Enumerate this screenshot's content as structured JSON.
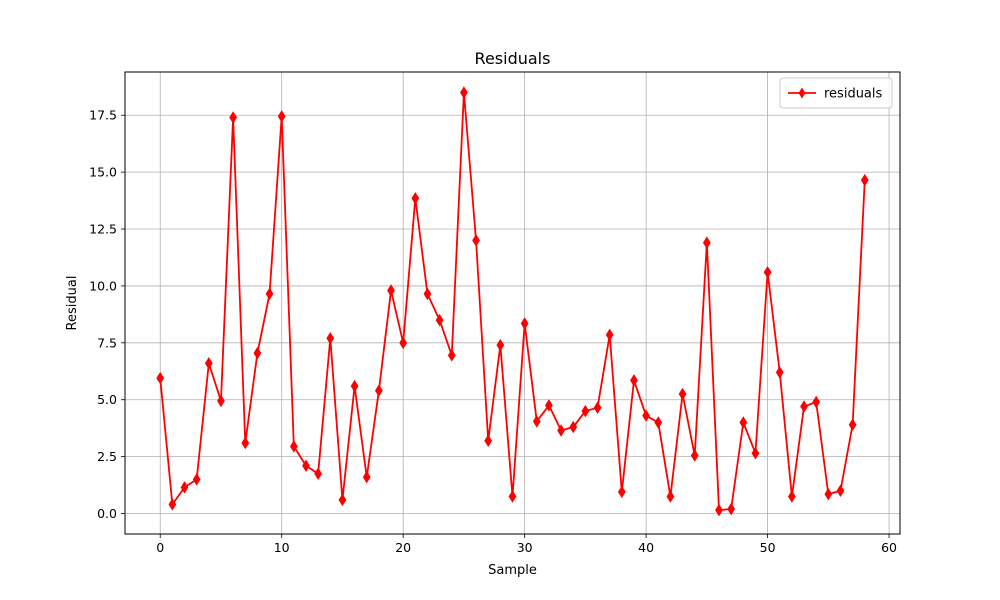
{
  "chart_data": {
    "type": "line",
    "title": "Residuals",
    "xlabel": "Sample",
    "ylabel": "Residual",
    "xlim": [
      -2.9,
      60.9
    ],
    "ylim": [
      -0.9,
      19.4
    ],
    "xticks": [
      0,
      10,
      20,
      30,
      40,
      50,
      60
    ],
    "yticks": [
      0.0,
      2.5,
      5.0,
      7.5,
      10.0,
      12.5,
      15.0,
      17.5
    ],
    "xtick_labels": [
      "0",
      "10",
      "20",
      "30",
      "40",
      "50",
      "60"
    ],
    "ytick_labels": [
      "0.0",
      "2.5",
      "5.0",
      "7.5",
      "10.0",
      "12.5",
      "15.0",
      "17.5"
    ],
    "grid": true,
    "legend_position": "top-right",
    "series": [
      {
        "name": "residuals",
        "color": "#ff0000",
        "marker": "diamond",
        "x": [
          0,
          1,
          2,
          3,
          4,
          5,
          6,
          7,
          8,
          9,
          10,
          11,
          12,
          13,
          14,
          15,
          16,
          17,
          18,
          19,
          20,
          21,
          22,
          23,
          24,
          25,
          26,
          27,
          28,
          29,
          30,
          31,
          32,
          33,
          34,
          35,
          36,
          37,
          38,
          39,
          40,
          41,
          42,
          43,
          44,
          45,
          46,
          47,
          48,
          49,
          50,
          51,
          52,
          53,
          54,
          55,
          56,
          57,
          58
        ],
        "values": [
          5.95,
          0.4,
          1.15,
          1.5,
          6.6,
          4.95,
          17.4,
          3.1,
          7.05,
          9.65,
          17.45,
          2.95,
          2.1,
          1.75,
          7.7,
          0.6,
          5.6,
          1.6,
          5.4,
          9.8,
          7.5,
          13.85,
          9.65,
          8.5,
          6.95,
          18.5,
          12.0,
          3.2,
          7.4,
          0.75,
          8.35,
          4.05,
          4.75,
          3.65,
          3.8,
          4.5,
          4.65,
          7.85,
          0.95,
          5.85,
          4.3,
          4.0,
          0.75,
          5.25,
          2.55,
          11.9,
          0.15,
          0.2,
          4.0,
          2.65,
          10.6,
          6.2,
          0.75,
          4.7,
          4.9,
          0.85,
          1.0,
          3.9,
          14.65
        ]
      }
    ]
  }
}
